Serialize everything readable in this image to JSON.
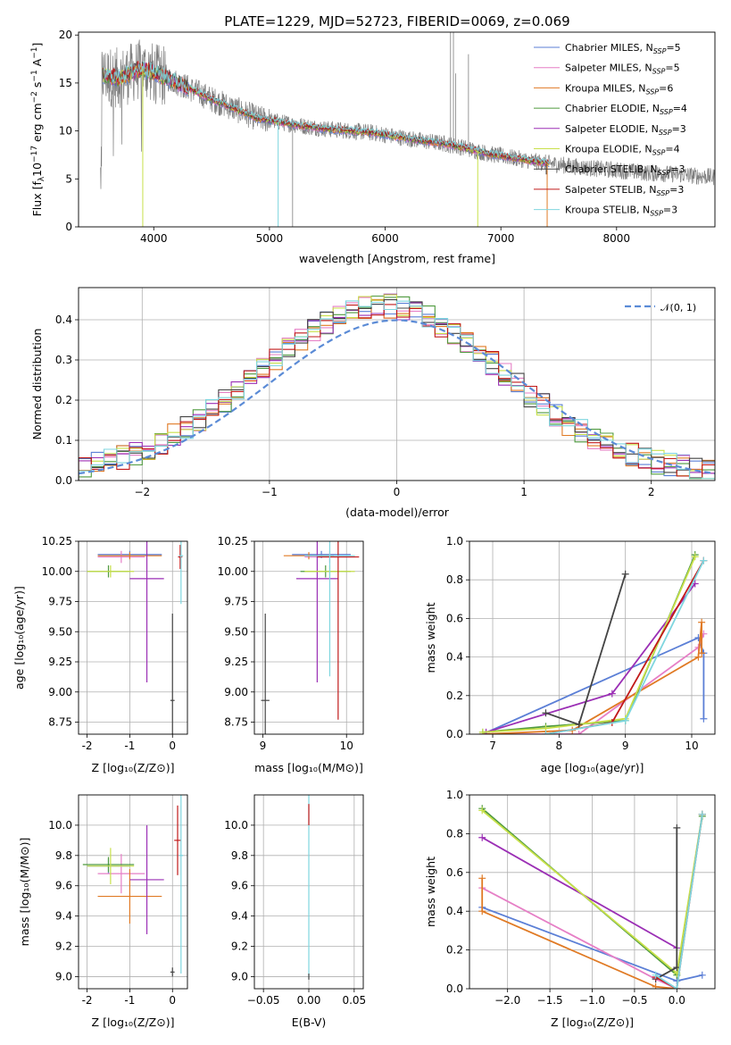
{
  "figure_title": "PLATE=1229, MJD=52723, FIBERID=0069, z=0.069",
  "colors": {
    "Chabrier MILES": "#5b7fd6",
    "Salpeter MILES": "#e67fc6",
    "Kroupa MILES": "#e07a24",
    "Chabrier ELODIE": "#4f9a3f",
    "Salpeter ELODIE": "#9b2fb5",
    "Kroupa ELODIE": "#c8e04a",
    "Chabrier STELIB": "#444444",
    "Salpeter STELIB": "#c11a1a",
    "Kroupa STELIB": "#7fd6df",
    "data": "#7f7f7f",
    "gaussian": "#5b8bd6"
  },
  "chart_data": [
    {
      "type": "line",
      "id": "spectrum",
      "title": "PLATE=1229, MJD=52723, FIBERID=0069, z=0.069",
      "xlabel": "wavelength [Angstrom, rest frame]",
      "ylabel": "Flux [f_λ 10^-17 erg cm^-2 s^-1 A^-1]",
      "xlim": [
        3350,
        8850
      ],
      "ylim": [
        0,
        20.3
      ],
      "xticks": [
        "4000",
        "5000",
        "6000",
        "7000",
        "8000"
      ],
      "yticks": [
        "0",
        "5",
        "10",
        "15",
        "20"
      ],
      "legend_position": "top-right",
      "legend": [
        {
          "model": "Chabrier MILES",
          "text": "Chabrier MILES, N",
          "nssp": "5"
        },
        {
          "model": "Salpeter MILES",
          "text": "Salpeter MILES, N",
          "nssp": "5"
        },
        {
          "model": "Kroupa MILES",
          "text": "Kroupa MILES, N",
          "nssp": "6"
        },
        {
          "model": "Chabrier ELODIE",
          "text": "Chabrier ELODIE, N",
          "nssp": "4"
        },
        {
          "model": "Salpeter ELODIE",
          "text": "Salpeter ELODIE, N",
          "nssp": "3"
        },
        {
          "model": "Kroupa ELODIE",
          "text": "Kroupa ELODIE, N",
          "nssp": "4"
        },
        {
          "model": "Chabrier STELIB",
          "text": "Chabrier STELIB, N",
          "nssp": "3"
        },
        {
          "model": "Salpeter STELIB",
          "text": "Salpeter STELIB, N",
          "nssp": "3"
        },
        {
          "model": "Kroupa STELIB",
          "text": "Kroupa STELIB, N",
          "nssp": "3"
        }
      ],
      "continuum": [
        [
          3550,
          15.8
        ],
        [
          3700,
          15.5
        ],
        [
          3900,
          16.5
        ],
        [
          4100,
          15.6
        ],
        [
          4300,
          14.5
        ],
        [
          4500,
          13.3
        ],
        [
          4700,
          12.3
        ],
        [
          4900,
          11.3
        ],
        [
          5100,
          10.9
        ],
        [
          5300,
          10.5
        ],
        [
          5500,
          10.2
        ],
        [
          5700,
          10.0
        ],
        [
          5900,
          9.8
        ],
        [
          6100,
          9.4
        ],
        [
          6300,
          9.0
        ],
        [
          6500,
          8.7
        ],
        [
          6700,
          8.2
        ],
        [
          6900,
          7.6
        ],
        [
          7100,
          7.2
        ],
        [
          7300,
          6.8
        ],
        [
          7500,
          6.5
        ],
        [
          7700,
          6.2
        ],
        [
          7900,
          6.0
        ],
        [
          8100,
          5.8
        ],
        [
          8300,
          5.6
        ],
        [
          8500,
          5.5
        ],
        [
          8700,
          5.3
        ],
        [
          8850,
          5.2
        ]
      ],
      "model_range": [
        3560,
        7420
      ]
    },
    {
      "type": "step",
      "id": "residuals",
      "xlabel": "(data-model)/error",
      "ylabel": "Normed distribution",
      "xlim": [
        -2.5,
        2.5
      ],
      "ylim": [
        0,
        0.48
      ],
      "xticks": [
        "−2",
        "−1",
        "0",
        "1",
        "2"
      ],
      "yticks": [
        "0.0",
        "0.1",
        "0.2",
        "0.3",
        "0.4"
      ],
      "legend": "𝒩(0, 1)",
      "legend_position": "top-right",
      "bin_width": 0.1,
      "gaussian": {
        "mean": 0,
        "sigma": 1
      }
    },
    {
      "type": "errorbar",
      "id": "age-vs-Z",
      "xlabel": "Z [log₁₀(Z/Z⊙)]",
      "ylabel": "age  [log₁₀(age/yr)]",
      "xlim": [
        -2.2,
        0.35
      ],
      "ylim": [
        8.65,
        10.25
      ],
      "xticks": [
        -2,
        -1,
        0
      ],
      "yticks": [
        "8.75",
        "9.00",
        "9.25",
        "9.50",
        "9.75",
        "10.00",
        "10.25"
      ],
      "points": [
        {
          "model": "Chabrier MILES",
          "x": -1.0,
          "xerr": 0.75,
          "y": 10.14,
          "yerr": 0.03
        },
        {
          "model": "Salpeter MILES",
          "x": -1.2,
          "xerr": 0.55,
          "y": 10.12,
          "yerr": 0.05
        },
        {
          "model": "Kroupa MILES",
          "x": -1.0,
          "xerr": 0.75,
          "y": 10.13,
          "yerr": 0.03
        },
        {
          "model": "Chabrier ELODIE",
          "x": -1.5,
          "xerr": 0.5,
          "y": 10.0,
          "yerr": 0.05
        },
        {
          "model": "Salpeter ELODIE",
          "x": -0.6,
          "xerr": 0.4,
          "y": 9.94,
          "yerr": 0.86
        },
        {
          "model": "Kroupa ELODIE",
          "x": -1.45,
          "xerr": 0.55,
          "y": 10.0,
          "yerr": 0.05
        },
        {
          "model": "Chabrier STELIB",
          "x": 0.0,
          "xerr": 0.05,
          "y": 8.93,
          "yerr": 0.72
        },
        {
          "model": "Salpeter STELIB",
          "x": 0.18,
          "xerr": 0.05,
          "y": 10.12,
          "yerr": 0.1
        },
        {
          "model": "Kroupa STELIB",
          "x": 0.2,
          "xerr": 0.05,
          "y": 10.13,
          "yerr": 0.4
        }
      ]
    },
    {
      "type": "errorbar",
      "id": "age-vs-mass",
      "xlabel": "mass [log₁₀(M/M⊙)]",
      "ylabel": "",
      "xlim": [
        8.9,
        10.2
      ],
      "ylim": [
        8.65,
        10.25
      ],
      "xticks": [
        9,
        10
      ],
      "yticks": [
        "8.75",
        "9.00",
        "9.25",
        "9.50",
        "9.75",
        "10.00",
        "10.25"
      ],
      "points": [
        {
          "model": "Chabrier MILES",
          "x": 9.7,
          "xerr": 0.35,
          "y": 10.14,
          "yerr": 0.03
        },
        {
          "model": "Salpeter MILES",
          "x": 9.8,
          "xerr": 0.3,
          "y": 10.12,
          "yerr": 0.05
        },
        {
          "model": "Kroupa MILES",
          "x": 9.55,
          "xerr": 0.3,
          "y": 10.13,
          "yerr": 0.03
        },
        {
          "model": "Chabrier ELODIE",
          "x": 9.75,
          "xerr": 0.3,
          "y": 10.0,
          "yerr": 0.05
        },
        {
          "model": "Salpeter ELODIE",
          "x": 9.65,
          "xerr": 0.25,
          "y": 9.94,
          "yerr": 0.86
        },
        {
          "model": "Kroupa ELODIE",
          "x": 9.8,
          "xerr": 0.3,
          "y": 10.0,
          "yerr": 0.05
        },
        {
          "model": "Chabrier STELIB",
          "x": 9.03,
          "xerr": 0.05,
          "y": 8.93,
          "yerr": 0.72
        },
        {
          "model": "Salpeter STELIB",
          "x": 9.9,
          "xerr": 0.25,
          "y": 10.12,
          "yerr": 1.35
        },
        {
          "model": "Kroupa STELIB",
          "x": 9.8,
          "xerr": 0.3,
          "y": 10.13,
          "yerr": 1.0
        }
      ]
    },
    {
      "type": "line",
      "id": "weight-vs-age",
      "xlabel": "age  [log₁₀(age/yr)]",
      "ylabel": "mass weight",
      "xlim": [
        6.65,
        10.35
      ],
      "ylim": [
        0,
        1.0
      ],
      "xticks": [
        7,
        8,
        9,
        10
      ],
      "yticks": [
        "0.0",
        "0.2",
        "0.4",
        "0.6",
        "0.8",
        "1.0"
      ],
      "series": [
        {
          "model": "Chabrier MILES",
          "x": [
            6.85,
            10.1,
            10.18,
            10.18
          ],
          "y": [
            0.0,
            0.5,
            0.42,
            0.08
          ]
        },
        {
          "model": "Salpeter MILES",
          "x": [
            6.9,
            8.3,
            10.1,
            10.18
          ],
          "y": [
            0.0,
            0.0,
            0.45,
            0.52
          ]
        },
        {
          "model": "Kroupa MILES",
          "x": [
            6.85,
            8.2,
            10.1,
            10.15,
            10.15
          ],
          "y": [
            0.0,
            0.02,
            0.4,
            0.58,
            0.42
          ]
        },
        {
          "model": "Chabrier ELODIE",
          "x": [
            6.85,
            7.8,
            9.0,
            10.05
          ],
          "y": [
            0.01,
            0.04,
            0.07,
            0.93
          ]
        },
        {
          "model": "Salpeter ELODIE",
          "x": [
            6.9,
            8.8,
            10.05
          ],
          "y": [
            0.01,
            0.21,
            0.78
          ]
        },
        {
          "model": "Kroupa ELODIE",
          "x": [
            6.85,
            7.8,
            9.0,
            10.05
          ],
          "y": [
            0.01,
            0.03,
            0.08,
            0.92
          ]
        },
        {
          "model": "Chabrier STELIB",
          "x": [
            7.8,
            8.3,
            9.0
          ],
          "y": [
            0.11,
            0.05,
            0.83
          ]
        },
        {
          "model": "Salpeter STELIB",
          "x": [
            7.8,
            8.8,
            10.18
          ],
          "y": [
            0.0,
            0.06,
            0.9
          ]
        },
        {
          "model": "Kroupa STELIB",
          "x": [
            7.8,
            9.0,
            10.18
          ],
          "y": [
            0.0,
            0.07,
            0.9
          ]
        }
      ]
    },
    {
      "type": "errorbar",
      "id": "mass-vs-Z",
      "xlabel": "Z [log₁₀(Z/Z⊙)]",
      "ylabel": "mass [log₁₀(M/M⊙)]",
      "xlim": [
        -2.2,
        0.35
      ],
      "ylim": [
        8.92,
        10.2
      ],
      "xticks": [
        -2,
        -1,
        0
      ],
      "yticks": [
        "9.0",
        "9.2",
        "9.4",
        "9.6",
        "9.8",
        "10.0"
      ],
      "points": [
        {
          "model": "Chabrier MILES",
          "x": -1.5,
          "xerr": 0.5,
          "y": 9.73,
          "yerr": 0.05
        },
        {
          "model": "Salpeter MILES",
          "x": -1.2,
          "xerr": 0.55,
          "y": 9.68,
          "yerr": 0.13
        },
        {
          "model": "Kroupa MILES",
          "x": -1.0,
          "xerr": 0.75,
          "y": 9.53,
          "yerr": 0.18
        },
        {
          "model": "Chabrier ELODIE",
          "x": -1.5,
          "xerr": 0.6,
          "y": 9.74,
          "yerr": 0.05
        },
        {
          "model": "Salpeter ELODIE",
          "x": -0.6,
          "xerr": 0.4,
          "y": 9.64,
          "yerr": 0.36
        },
        {
          "model": "Kroupa ELODIE",
          "x": -1.45,
          "xerr": 0.55,
          "y": 9.73,
          "yerr": 0.12
        },
        {
          "model": "Chabrier STELIB",
          "x": 0.0,
          "xerr": 0.05,
          "y": 9.03,
          "yerr": 0.03
        },
        {
          "model": "Salpeter STELIB",
          "x": 0.12,
          "xerr": 0.08,
          "y": 9.9,
          "yerr": 0.23
        },
        {
          "model": "Kroupa STELIB",
          "x": 0.2,
          "xerr": 0.05,
          "y": 9.8,
          "yerr": 0.78
        }
      ]
    },
    {
      "type": "errorbar",
      "id": "mass-vs-ebv",
      "xlabel": "E(B-V)",
      "ylabel": "",
      "xlim": [
        -0.06,
        0.06
      ],
      "ylim": [
        8.92,
        10.2
      ],
      "xticks": [
        "−0.05",
        "0.00",
        "0.05"
      ],
      "yticks": [
        "9.0",
        "9.2",
        "9.4",
        "9.6",
        "9.8",
        "10.0"
      ],
      "points": [
        {
          "model": "Kroupa STELIB",
          "x": 0.0,
          "xerr": 0.0,
          "y": 9.6,
          "yerr": 0.6
        },
        {
          "model": "Salpeter STELIB",
          "x": 0.0,
          "xerr": 0.0,
          "y": 10.07,
          "yerr": 0.07
        },
        {
          "model": "Chabrier STELIB",
          "x": 0.0,
          "xerr": 0.0,
          "y": 9.0,
          "yerr": 0.02
        }
      ]
    },
    {
      "type": "line",
      "id": "weight-vs-Z",
      "xlabel": "Z [log₁₀(Z/Z⊙)]",
      "ylabel": "mass weight",
      "xlim": [
        -2.45,
        0.45
      ],
      "ylim": [
        0,
        1.0
      ],
      "xticks": [
        "−2.0",
        "−1.5",
        "−1.0",
        "−0.5",
        "0.0"
      ],
      "yticks": [
        "0.0",
        "0.2",
        "0.4",
        "0.6",
        "0.8",
        "1.0"
      ],
      "series": [
        {
          "model": "Chabrier MILES",
          "x": [
            -2.3,
            0.0,
            0.3
          ],
          "y": [
            0.42,
            0.04,
            0.07
          ]
        },
        {
          "model": "Salpeter MILES",
          "x": [
            -2.3,
            -0.25,
            0.0
          ],
          "y": [
            0.52,
            0.05,
            0.0
          ]
        },
        {
          "model": "Kroupa MILES",
          "x": [
            -2.3,
            -2.3,
            -0.25,
            0.0
          ],
          "y": [
            0.57,
            0.4,
            0.01,
            0.0
          ]
        },
        {
          "model": "Chabrier ELODIE",
          "x": [
            -2.3,
            0.0,
            0.3
          ],
          "y": [
            0.93,
            0.07,
            0.89
          ]
        },
        {
          "model": "Salpeter ELODIE",
          "x": [
            -2.3,
            0.0
          ],
          "y": [
            0.78,
            0.21
          ]
        },
        {
          "model": "Kroupa ELODIE",
          "x": [
            -2.3,
            0.0,
            0.3
          ],
          "y": [
            0.92,
            0.08,
            0.9
          ]
        },
        {
          "model": "Chabrier STELIB",
          "x": [
            -0.25,
            0.0,
            0.0
          ],
          "y": [
            0.05,
            0.11,
            0.83
          ]
        },
        {
          "model": "Salpeter STELIB",
          "x": [
            -0.25,
            0.0,
            0.3
          ],
          "y": [
            0.06,
            0.0,
            0.9
          ]
        },
        {
          "model": "Kroupa STELIB",
          "x": [
            -0.25,
            0.0,
            0.3
          ],
          "y": [
            0.07,
            0.0,
            0.9
          ]
        }
      ]
    }
  ]
}
